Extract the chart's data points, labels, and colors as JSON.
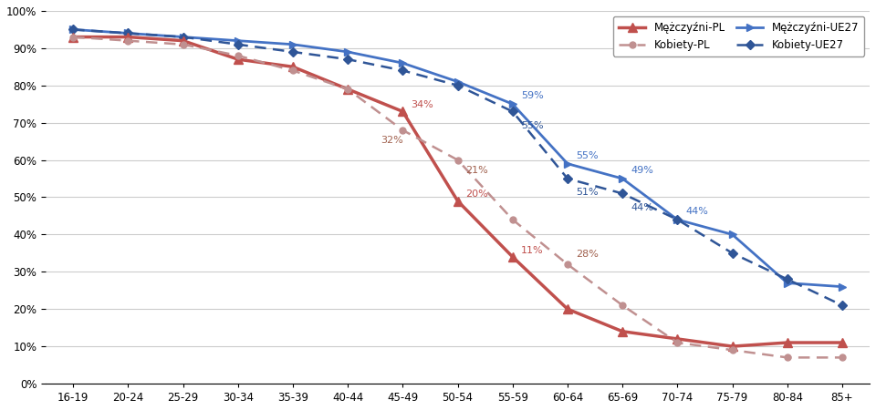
{
  "categories": [
    "16-19",
    "20-24",
    "25-29",
    "30-34",
    "35-39",
    "40-44",
    "45-49",
    "50-54",
    "55-59",
    "60-64",
    "65-69",
    "70-74",
    "75-79",
    "80-84",
    "85+"
  ],
  "mezczyni_pl": [
    93,
    93,
    92,
    87,
    85,
    79,
    73,
    49,
    34,
    20,
    14,
    12,
    10,
    11,
    11
  ],
  "kobiety_pl": [
    93,
    92,
    91,
    88,
    84,
    79,
    68,
    60,
    44,
    32,
    21,
    11,
    9,
    7,
    7
  ],
  "mezczyni_ue27": [
    95,
    94,
    93,
    92,
    91,
    89,
    86,
    81,
    75,
    59,
    55,
    44,
    40,
    27,
    26
  ],
  "kobiety_ue27": [
    95,
    94,
    93,
    91,
    89,
    87,
    84,
    80,
    73,
    55,
    51,
    44,
    35,
    28,
    21
  ],
  "annotations": {
    "mezczyni_ue27": {
      "55-59": "59%",
      "60-64": "55%",
      "65-69": "49%",
      "70-74": "44%"
    },
    "kobiety_ue27": {
      "55-59": "55%",
      "60-64": "51%",
      "65-69": "44%"
    },
    "mezczyni_pl": {
      "45-49": "34%",
      "50-54": "20%",
      "55-59": "11%"
    },
    "kobiety_pl": {
      "45-49": "32%",
      "50-54": "21%",
      "55-59": "28%"
    }
  },
  "legend": {
    "Mężczyźni-PL": {
      "color": "#C0504D",
      "linestyle": "solid",
      "marker": "^"
    },
    "Kobiety-PL": {
      "color": "#C09090",
      "linestyle": "dashed",
      "marker": "o"
    },
    "Mężczyźni-UE27": {
      "color": "#4472C4",
      "linestyle": "solid",
      "marker": ">"
    },
    "Kobiety-UE27": {
      "color": "#4472C4",
      "linestyle": "dashed",
      "marker": "D"
    }
  },
  "colors": {
    "mezczyni_pl": "#C0504D",
    "kobiety_pl": "#C09090",
    "mezczyni_ue27": "#4472C4",
    "kobiety_ue27": "#4472C4"
  },
  "background": "#FFFFFF",
  "grid_color": "#CCCCCC",
  "ylim": [
    0,
    100
  ],
  "yticks": [
    0,
    10,
    20,
    30,
    40,
    50,
    60,
    70,
    80,
    90,
    100
  ]
}
